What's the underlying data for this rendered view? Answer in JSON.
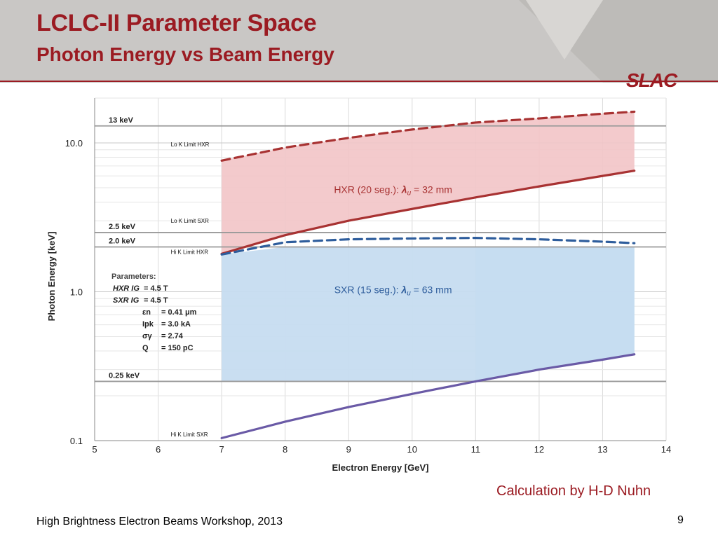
{
  "header": {
    "title": "LCLC-II Parameter Space",
    "subtitle": "Photon Energy vs Beam Energy",
    "logo_text": "SLAC"
  },
  "footer": {
    "credit": "Calculation by H-D Nuhn",
    "workshop": "High Brightness Electron Beams Workshop, 2013",
    "page_number": "9"
  },
  "colors": {
    "brand": "#9b1b22",
    "hxr": "#a83232",
    "hxr_fill": "#f2c4c6",
    "sxr": "#2e5d9c",
    "sxr_fill": "#c6dcf0",
    "hi_k_sxr": "#6a5aa6"
  },
  "chart_data": {
    "type": "area",
    "xlabel": "Electron  Energy [GeV]",
    "ylabel": "Photon Energy [keV]",
    "xlim": [
      5,
      14
    ],
    "ylim": [
      0.1,
      20
    ],
    "yscale": "log",
    "x_ticks": [
      "5",
      "6",
      "7",
      "8",
      "9",
      "10",
      "11",
      "12",
      "13",
      "14"
    ],
    "y_ticks": [
      {
        "label": "10.0",
        "value": 10
      },
      {
        "label": "1.0",
        "value": 1
      },
      {
        "label": "0.1",
        "value": 0.1
      }
    ],
    "grid": true,
    "reference_lines": [
      {
        "label": "13 keV",
        "value": 13
      },
      {
        "label": "2.5 keV",
        "value": 2.5
      },
      {
        "label": "2.0 keV",
        "value": 2.0
      },
      {
        "label": "0.25 keV",
        "value": 0.25
      }
    ],
    "series": [
      {
        "name": "Lo K Limit HXR",
        "style": "dashed",
        "color": "#a83232",
        "x": [
          7,
          8,
          9,
          10,
          11,
          12,
          13,
          13.5
        ],
        "y": [
          7.6,
          9.3,
          10.8,
          12.3,
          13.7,
          14.6,
          15.7,
          16.2
        ]
      },
      {
        "name": "Hi K Limit HXR",
        "style": "solid",
        "color": "#a83232",
        "x": [
          7,
          8,
          9,
          10,
          11,
          12,
          13,
          13.5
        ],
        "y": [
          1.8,
          2.4,
          3.0,
          3.6,
          4.3,
          5.1,
          6.0,
          6.5
        ]
      },
      {
        "name": "Lo K Limit SXR",
        "style": "dashed",
        "color": "#2e5d9c",
        "x": [
          7,
          8,
          9,
          10,
          11,
          12,
          13,
          13.5
        ],
        "y": [
          1.78,
          2.15,
          2.25,
          2.28,
          2.3,
          2.25,
          2.17,
          2.12
        ]
      },
      {
        "name": "Hi K Limit SXR",
        "style": "solid",
        "color": "#6a5aa6",
        "x": [
          7,
          8,
          9,
          10,
          11,
          12,
          13,
          13.5
        ],
        "y": [
          0.104,
          0.134,
          0.168,
          0.206,
          0.25,
          0.3,
          0.35,
          0.38
        ]
      }
    ],
    "regions": [
      {
        "label": "HXR (20 seg.):",
        "lambda_text": "λ",
        "lambda_sub": "u",
        "lambda_value": " = 32 mm",
        "color": "#f2c4c6"
      },
      {
        "label": "SXR (15 seg.):",
        "lambda_text": "λ",
        "lambda_sub": "u",
        "lambda_value": " = 63 mm",
        "color": "#c6dcf0"
      }
    ],
    "parameters": {
      "heading": "Parameters:",
      "lines": [
        {
          "name": "HXR IG",
          "value": "= 4.5 T"
        },
        {
          "name": "SXR IG",
          "value": "= 4.5 T"
        },
        {
          "name": "εn",
          "value": "= 0.41 μm"
        },
        {
          "name": "Ipk",
          "value": "= 3.0 kA"
        },
        {
          "name": "σγ",
          "value": "= 2.74"
        },
        {
          "name": "Q",
          "value": "= 150 pC"
        }
      ]
    }
  }
}
